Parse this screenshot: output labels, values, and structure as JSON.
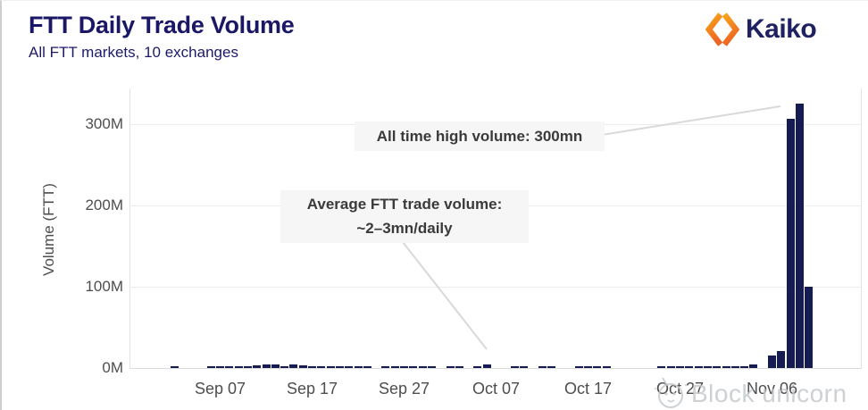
{
  "header": {
    "title": "FTT Daily Trade Volume",
    "subtitle": "All FTT markets, 10 exchanges",
    "logo_text": "Kaiko",
    "logo_colors": {
      "orange_light": "#F9A51B",
      "orange_dark": "#EC6522",
      "navy": "#1E2263"
    }
  },
  "watermark": {
    "text": "Block unicorn"
  },
  "annotations": {
    "ath_label": "All time high volume: 300mn",
    "avg_line1": "Average FTT trade volume:",
    "avg_line2": "~2–3mn/daily"
  },
  "chart_data": {
    "type": "bar",
    "title": "FTT Daily Trade Volume",
    "subtitle": "All FTT markets, 10 exchanges",
    "xlabel": "",
    "ylabel": "Volume (FTT)",
    "unit": "millions of FTT",
    "ylim": [
      0,
      345
    ],
    "grid": "horizontal",
    "legend": "none",
    "bar_color": "#161B52",
    "y_ticks": [
      "0M",
      "100M",
      "200M",
      "300M"
    ],
    "x_ticks": [
      "Sep 07",
      "Sep 17",
      "Sep 27",
      "Oct 07",
      "Oct 17",
      "Oct 27",
      "Nov 06"
    ],
    "dates": [
      "Sep 02",
      "Sep 03",
      "Sep 04",
      "Sep 05",
      "Sep 06",
      "Sep 07",
      "Sep 08",
      "Sep 09",
      "Sep 10",
      "Sep 11",
      "Sep 12",
      "Sep 13",
      "Sep 14",
      "Sep 15",
      "Sep 16",
      "Sep 17",
      "Sep 18",
      "Sep 19",
      "Sep 20",
      "Sep 21",
      "Sep 22",
      "Sep 23",
      "Sep 24",
      "Sep 25",
      "Sep 26",
      "Sep 27",
      "Sep 28",
      "Sep 29",
      "Sep 30",
      "Oct 01",
      "Oct 02",
      "Oct 03",
      "Oct 04",
      "Oct 05",
      "Oct 06",
      "Oct 07",
      "Oct 08",
      "Oct 09",
      "Oct 10",
      "Oct 11",
      "Oct 12",
      "Oct 13",
      "Oct 14",
      "Oct 15",
      "Oct 16",
      "Oct 17",
      "Oct 18",
      "Oct 19",
      "Oct 20",
      "Oct 21",
      "Oct 22",
      "Oct 23",
      "Oct 24",
      "Oct 25",
      "Oct 26",
      "Oct 27",
      "Oct 28",
      "Oct 29",
      "Oct 30",
      "Oct 31",
      "Nov 01",
      "Nov 02",
      "Nov 03",
      "Nov 04",
      "Nov 05",
      "Nov 06",
      "Nov 07",
      "Nov 08",
      "Nov 09",
      "Nov 10"
    ],
    "values": [
      2,
      0,
      0,
      0,
      2,
      2,
      2,
      2,
      2,
      3,
      4,
      4,
      2,
      4,
      3,
      2,
      2,
      2,
      2,
      2,
      2,
      2,
      0,
      2,
      2,
      2,
      2,
      2,
      2,
      0,
      2,
      2,
      0,
      2,
      4,
      0,
      0,
      2,
      2,
      0,
      2,
      2,
      0,
      0,
      2,
      2,
      2,
      2,
      0,
      0,
      0,
      0,
      0,
      2,
      2,
      2,
      2,
      2,
      2,
      2,
      2,
      2,
      2,
      4,
      0,
      15,
      21,
      307,
      326,
      100
    ],
    "annotations": [
      {
        "text": "All time high volume: 300mn"
      },
      {
        "text": "Average FTT trade volume: ~2–3mn/daily"
      }
    ]
  }
}
